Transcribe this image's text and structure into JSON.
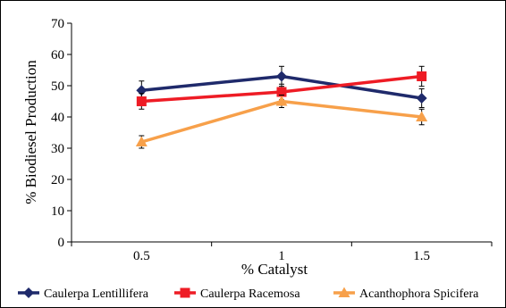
{
  "chart_data": {
    "type": "line",
    "xlabel": "% Catalyst",
    "ylabel": "% Biodiesel Production",
    "categories": [
      "0.5",
      "1",
      "1.5"
    ],
    "ylim": [
      0,
      70
    ],
    "yticks": [
      "0",
      "10",
      "20",
      "30",
      "40",
      "50",
      "60",
      "70"
    ],
    "grid": false,
    "legend_position": "bottom",
    "series": [
      {
        "name": "Caulerpa Lentillifera",
        "values": [
          48.5,
          53,
          46
        ],
        "errors": [
          3,
          3.2,
          3
        ],
        "color": "#1f2a6b",
        "marker": "diamond"
      },
      {
        "name": "Caulerpa Racemosa",
        "values": [
          45,
          48,
          53
        ],
        "errors": [
          2.5,
          2.5,
          3.2
        ],
        "color": "#ee1c25",
        "marker": "square"
      },
      {
        "name": "Acanthophora Spicifera",
        "values": [
          32,
          45,
          40
        ],
        "errors": [
          2,
          2,
          2.5
        ],
        "color": "#f7a04a",
        "marker": "triangle"
      }
    ]
  }
}
